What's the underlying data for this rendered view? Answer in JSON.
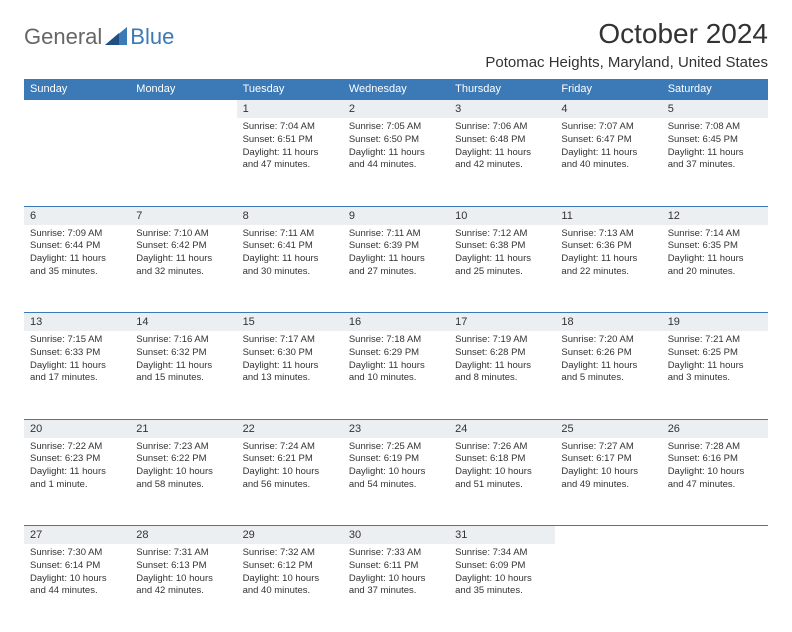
{
  "logo": {
    "general": "General",
    "blue": "Blue"
  },
  "header": {
    "month_title": "October 2024",
    "location": "Potomac Heights, Maryland, United States"
  },
  "daynames": [
    "Sunday",
    "Monday",
    "Tuesday",
    "Wednesday",
    "Thursday",
    "Friday",
    "Saturday"
  ],
  "colors": {
    "accent": "#3b79b7",
    "header_text": "#ffffff",
    "daynum_bg": "#eceff2",
    "body_text": "#333333",
    "page_bg": "#ffffff"
  },
  "weeks": [
    {
      "nums": [
        "",
        "",
        "1",
        "2",
        "3",
        "4",
        "5"
      ],
      "cells": [
        null,
        null,
        {
          "sunrise": "Sunrise: 7:04 AM",
          "sunset": "Sunset: 6:51 PM",
          "day1": "Daylight: 11 hours",
          "day2": "and 47 minutes."
        },
        {
          "sunrise": "Sunrise: 7:05 AM",
          "sunset": "Sunset: 6:50 PM",
          "day1": "Daylight: 11 hours",
          "day2": "and 44 minutes."
        },
        {
          "sunrise": "Sunrise: 7:06 AM",
          "sunset": "Sunset: 6:48 PM",
          "day1": "Daylight: 11 hours",
          "day2": "and 42 minutes."
        },
        {
          "sunrise": "Sunrise: 7:07 AM",
          "sunset": "Sunset: 6:47 PM",
          "day1": "Daylight: 11 hours",
          "day2": "and 40 minutes."
        },
        {
          "sunrise": "Sunrise: 7:08 AM",
          "sunset": "Sunset: 6:45 PM",
          "day1": "Daylight: 11 hours",
          "day2": "and 37 minutes."
        }
      ]
    },
    {
      "nums": [
        "6",
        "7",
        "8",
        "9",
        "10",
        "11",
        "12"
      ],
      "cells": [
        {
          "sunrise": "Sunrise: 7:09 AM",
          "sunset": "Sunset: 6:44 PM",
          "day1": "Daylight: 11 hours",
          "day2": "and 35 minutes."
        },
        {
          "sunrise": "Sunrise: 7:10 AM",
          "sunset": "Sunset: 6:42 PM",
          "day1": "Daylight: 11 hours",
          "day2": "and 32 minutes."
        },
        {
          "sunrise": "Sunrise: 7:11 AM",
          "sunset": "Sunset: 6:41 PM",
          "day1": "Daylight: 11 hours",
          "day2": "and 30 minutes."
        },
        {
          "sunrise": "Sunrise: 7:11 AM",
          "sunset": "Sunset: 6:39 PM",
          "day1": "Daylight: 11 hours",
          "day2": "and 27 minutes."
        },
        {
          "sunrise": "Sunrise: 7:12 AM",
          "sunset": "Sunset: 6:38 PM",
          "day1": "Daylight: 11 hours",
          "day2": "and 25 minutes."
        },
        {
          "sunrise": "Sunrise: 7:13 AM",
          "sunset": "Sunset: 6:36 PM",
          "day1": "Daylight: 11 hours",
          "day2": "and 22 minutes."
        },
        {
          "sunrise": "Sunrise: 7:14 AM",
          "sunset": "Sunset: 6:35 PM",
          "day1": "Daylight: 11 hours",
          "day2": "and 20 minutes."
        }
      ]
    },
    {
      "nums": [
        "13",
        "14",
        "15",
        "16",
        "17",
        "18",
        "19"
      ],
      "cells": [
        {
          "sunrise": "Sunrise: 7:15 AM",
          "sunset": "Sunset: 6:33 PM",
          "day1": "Daylight: 11 hours",
          "day2": "and 17 minutes."
        },
        {
          "sunrise": "Sunrise: 7:16 AM",
          "sunset": "Sunset: 6:32 PM",
          "day1": "Daylight: 11 hours",
          "day2": "and 15 minutes."
        },
        {
          "sunrise": "Sunrise: 7:17 AM",
          "sunset": "Sunset: 6:30 PM",
          "day1": "Daylight: 11 hours",
          "day2": "and 13 minutes."
        },
        {
          "sunrise": "Sunrise: 7:18 AM",
          "sunset": "Sunset: 6:29 PM",
          "day1": "Daylight: 11 hours",
          "day2": "and 10 minutes."
        },
        {
          "sunrise": "Sunrise: 7:19 AM",
          "sunset": "Sunset: 6:28 PM",
          "day1": "Daylight: 11 hours",
          "day2": "and 8 minutes."
        },
        {
          "sunrise": "Sunrise: 7:20 AM",
          "sunset": "Sunset: 6:26 PM",
          "day1": "Daylight: 11 hours",
          "day2": "and 5 minutes."
        },
        {
          "sunrise": "Sunrise: 7:21 AM",
          "sunset": "Sunset: 6:25 PM",
          "day1": "Daylight: 11 hours",
          "day2": "and 3 minutes."
        }
      ]
    },
    {
      "nums": [
        "20",
        "21",
        "22",
        "23",
        "24",
        "25",
        "26"
      ],
      "cells": [
        {
          "sunrise": "Sunrise: 7:22 AM",
          "sunset": "Sunset: 6:23 PM",
          "day1": "Daylight: 11 hours",
          "day2": "and 1 minute."
        },
        {
          "sunrise": "Sunrise: 7:23 AM",
          "sunset": "Sunset: 6:22 PM",
          "day1": "Daylight: 10 hours",
          "day2": "and 58 minutes."
        },
        {
          "sunrise": "Sunrise: 7:24 AM",
          "sunset": "Sunset: 6:21 PM",
          "day1": "Daylight: 10 hours",
          "day2": "and 56 minutes."
        },
        {
          "sunrise": "Sunrise: 7:25 AM",
          "sunset": "Sunset: 6:19 PM",
          "day1": "Daylight: 10 hours",
          "day2": "and 54 minutes."
        },
        {
          "sunrise": "Sunrise: 7:26 AM",
          "sunset": "Sunset: 6:18 PM",
          "day1": "Daylight: 10 hours",
          "day2": "and 51 minutes."
        },
        {
          "sunrise": "Sunrise: 7:27 AM",
          "sunset": "Sunset: 6:17 PM",
          "day1": "Daylight: 10 hours",
          "day2": "and 49 minutes."
        },
        {
          "sunrise": "Sunrise: 7:28 AM",
          "sunset": "Sunset: 6:16 PM",
          "day1": "Daylight: 10 hours",
          "day2": "and 47 minutes."
        }
      ]
    },
    {
      "nums": [
        "27",
        "28",
        "29",
        "30",
        "31",
        "",
        ""
      ],
      "cells": [
        {
          "sunrise": "Sunrise: 7:30 AM",
          "sunset": "Sunset: 6:14 PM",
          "day1": "Daylight: 10 hours",
          "day2": "and 44 minutes."
        },
        {
          "sunrise": "Sunrise: 7:31 AM",
          "sunset": "Sunset: 6:13 PM",
          "day1": "Daylight: 10 hours",
          "day2": "and 42 minutes."
        },
        {
          "sunrise": "Sunrise: 7:32 AM",
          "sunset": "Sunset: 6:12 PM",
          "day1": "Daylight: 10 hours",
          "day2": "and 40 minutes."
        },
        {
          "sunrise": "Sunrise: 7:33 AM",
          "sunset": "Sunset: 6:11 PM",
          "day1": "Daylight: 10 hours",
          "day2": "and 37 minutes."
        },
        {
          "sunrise": "Sunrise: 7:34 AM",
          "sunset": "Sunset: 6:09 PM",
          "day1": "Daylight: 10 hours",
          "day2": "and 35 minutes."
        },
        null,
        null
      ]
    }
  ]
}
